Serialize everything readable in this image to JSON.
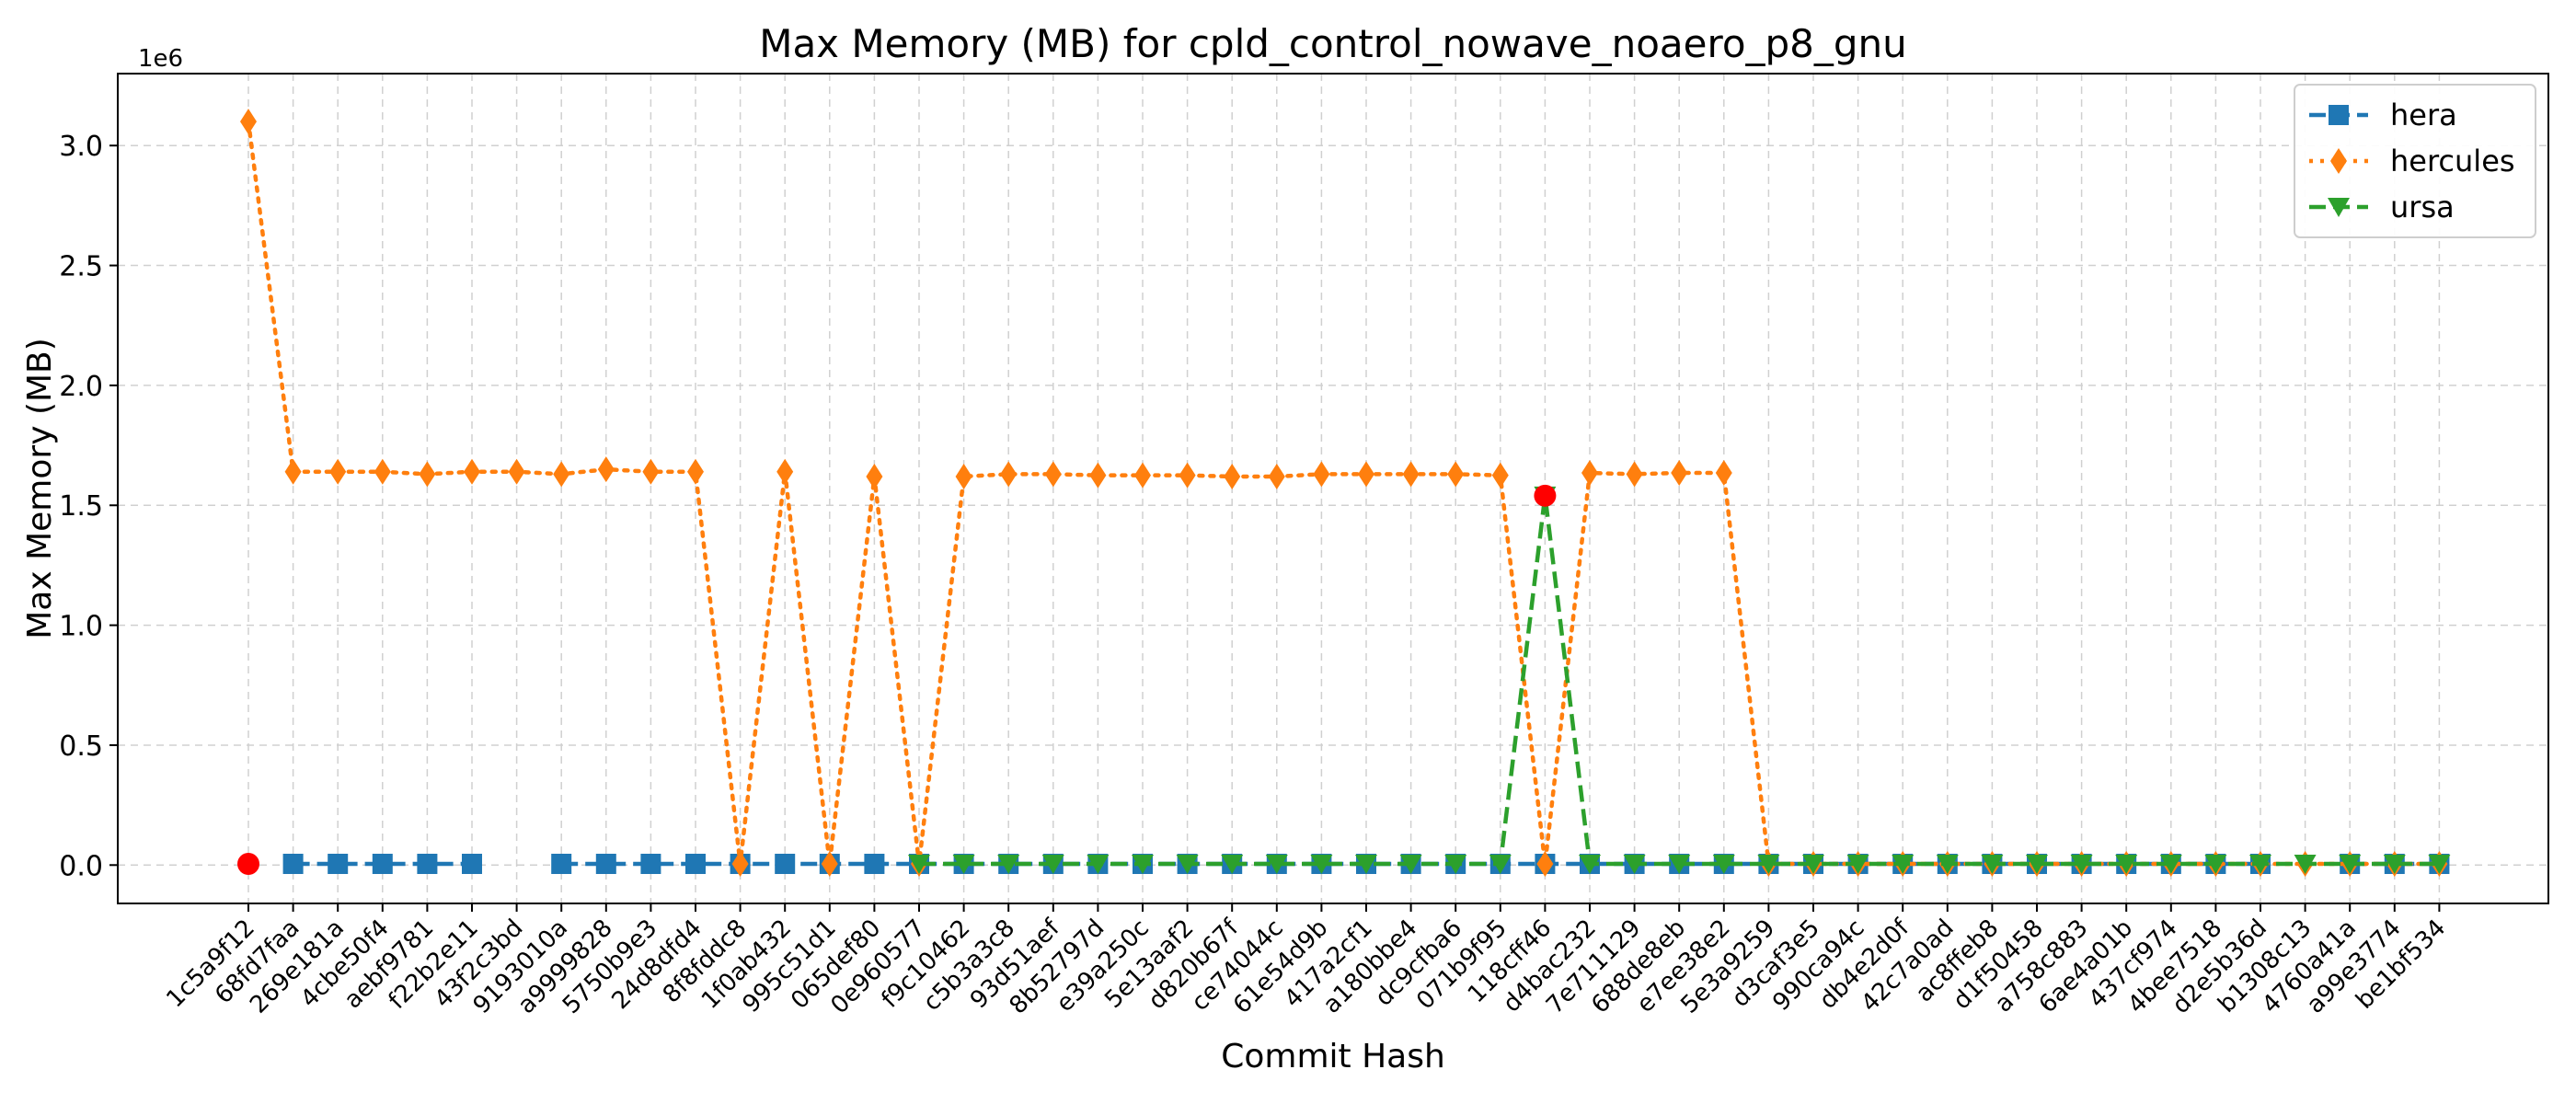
{
  "chart_data": {
    "type": "line",
    "title": "Max Memory (MB) for cpld_control_nowave_noaero_p8_gnu",
    "xlabel": "Commit Hash",
    "ylabel": "Max Memory (MB)",
    "y_offset_label": "1e6",
    "y_scale": 1000000,
    "ylim": [
      -160000,
      3300000
    ],
    "yticks": [
      0,
      500000,
      1000000,
      1500000,
      2000000,
      2500000,
      3000000
    ],
    "ytick_labels": [
      "0.0",
      "0.5",
      "1.0",
      "1.5",
      "2.0",
      "2.5",
      "3.0"
    ],
    "grid": true,
    "legend_position": "top-right",
    "categories": [
      "1c5a9f12",
      "68fd7faa",
      "269e181a",
      "4cbe50f4",
      "aebf9781",
      "f22b2e11",
      "43f2c3bd",
      "9193010a",
      "a9999828",
      "5750b9e3",
      "24d8dfd4",
      "8f8fddc8",
      "1f0ab432",
      "995c51d1",
      "065def80",
      "0e960577",
      "f9c10462",
      "c5b3a3c8",
      "93d51aef",
      "8b52797d",
      "e39a250c",
      "5e13aaf2",
      "d820b67f",
      "ce74044c",
      "61e54d9b",
      "417a2cf1",
      "a180bbe4",
      "dc9cfba6",
      "071b9f95",
      "118cff46",
      "d4bac232",
      "7e711129",
      "688de8eb",
      "e7ee38e2",
      "5e3a9259",
      "d3caf3e5",
      "990ca94c",
      "db4e2d0f",
      "42c7a0ad",
      "ac8ffeb8",
      "d1f50458",
      "a758c883",
      "6ae4a01b",
      "437cf974",
      "4bee7518",
      "d2e5b36d",
      "b1308c13",
      "4760a41a",
      "a99e3774",
      "be1bf534"
    ],
    "series": [
      {
        "name": "hera",
        "color": "#1f77b4",
        "marker": "square",
        "dash": "dashed",
        "values": [
          null,
          5000,
          5000,
          5000,
          5000,
          5000,
          null,
          5000,
          5000,
          5000,
          5000,
          5000,
          5000,
          5000,
          5000,
          5000,
          5000,
          5000,
          5000,
          5000,
          5000,
          5000,
          5000,
          5000,
          5000,
          5000,
          5000,
          5000,
          5000,
          5000,
          5000,
          5000,
          5000,
          5000,
          5000,
          5000,
          5000,
          5000,
          5000,
          5000,
          5000,
          5000,
          5000,
          5000,
          5000,
          5000,
          null,
          5000,
          5000,
          5000
        ]
      },
      {
        "name": "hercules",
        "color": "#ff7f0e",
        "marker": "diamond",
        "dash": "dotted",
        "values": [
          3100000,
          1640000,
          1640000,
          1640000,
          1630000,
          1640000,
          1640000,
          1630000,
          1650000,
          1640000,
          1640000,
          5000,
          1640000,
          5000,
          1620000,
          5000,
          1620000,
          1630000,
          1630000,
          1625000,
          1625000,
          1625000,
          1620000,
          1620000,
          1630000,
          1630000,
          1630000,
          1630000,
          1625000,
          5000,
          1635000,
          1630000,
          1635000,
          1635000,
          5000,
          5000,
          5000,
          5000,
          5000,
          5000,
          5000,
          5000,
          5000,
          5000,
          5000,
          5000,
          5000,
          5000,
          5000,
          5000
        ]
      },
      {
        "name": "ursa",
        "color": "#2ca02c",
        "marker": "triangle-down",
        "dash": "dashed",
        "values": [
          null,
          null,
          null,
          null,
          null,
          null,
          null,
          null,
          null,
          null,
          null,
          null,
          null,
          null,
          null,
          5000,
          5000,
          5000,
          5000,
          5000,
          5000,
          5000,
          5000,
          5000,
          5000,
          5000,
          5000,
          5000,
          5000,
          1540000,
          5000,
          5000,
          5000,
          5000,
          5000,
          5000,
          5000,
          5000,
          5000,
          5000,
          5000,
          5000,
          5000,
          5000,
          5000,
          5000,
          5000,
          5000,
          5000,
          5000
        ]
      }
    ],
    "highlight_points": [
      {
        "category": "1c5a9f12",
        "value": 5000,
        "color": "#ff0000"
      },
      {
        "category": "118cff46",
        "value": 1540000,
        "color": "#ff0000"
      }
    ]
  }
}
